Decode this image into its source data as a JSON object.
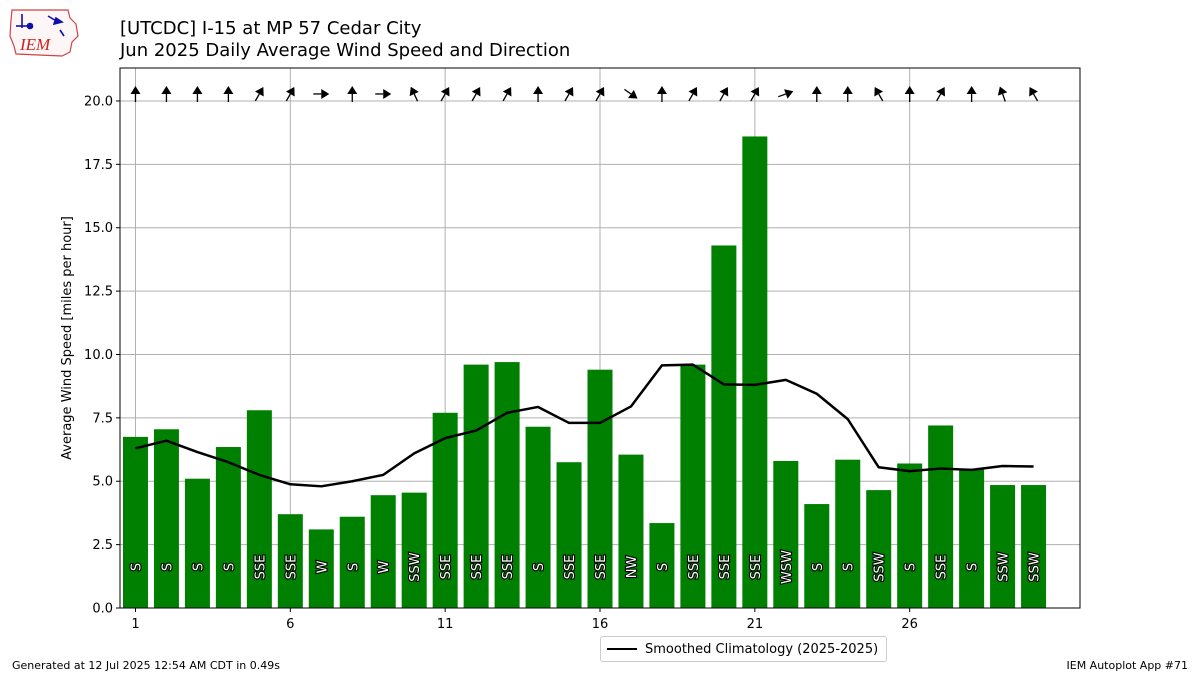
{
  "header": {
    "title_line1": "[UTCDC] I-15 at MP 57 Cedar City",
    "title_line2": "Jun 2025 Daily Average Wind Speed and Direction",
    "logo_text": "IEM"
  },
  "footer": {
    "generated": "Generated at 12 Jul 2025 12:54 AM CDT in 0.49s",
    "app": "IEM Autoplot App #71"
  },
  "legend": {
    "line_label": "Smoothed Climatology (2025-2025)"
  },
  "colors": {
    "bar": "#008000",
    "line": "#000000",
    "grid": "#b0b0b0",
    "arrow": "#000000"
  },
  "chart_data": {
    "type": "bar",
    "xlabel": "",
    "ylabel": "Average Wind Speed [miles per hour]",
    "xlim": [
      0.5,
      31.5
    ],
    "ylim": [
      0,
      21.3
    ],
    "xticks": [
      1,
      6,
      11,
      16,
      21,
      26
    ],
    "yticks": [
      "0.0",
      "2.5",
      "5.0",
      "7.5",
      "10.0",
      "12.5",
      "15.0",
      "17.5",
      "20.0"
    ],
    "grid": true,
    "legend_position": "bottom-center",
    "days": [
      1,
      2,
      3,
      4,
      5,
      6,
      7,
      8,
      9,
      10,
      11,
      12,
      13,
      14,
      15,
      16,
      17,
      18,
      19,
      20,
      21,
      22,
      23,
      24,
      25,
      26,
      27,
      28,
      29,
      30
    ],
    "speed": [
      6.75,
      7.05,
      5.1,
      6.35,
      7.8,
      3.7,
      3.1,
      3.6,
      4.45,
      4.55,
      7.7,
      9.6,
      9.7,
      7.15,
      5.75,
      9.4,
      6.05,
      3.35,
      9.6,
      14.3,
      18.6,
      5.8,
      4.1,
      5.85,
      4.65,
      5.7,
      7.2,
      5.5,
      4.85,
      4.85
    ],
    "direction": [
      "S",
      "S",
      "S",
      "S",
      "SSE",
      "SSE",
      "W",
      "S",
      "W",
      "SSW",
      "SSE",
      "SSE",
      "SSE",
      "S",
      "SSE",
      "SSE",
      "NW",
      "S",
      "SSE",
      "SSE",
      "SSE",
      "WSW",
      "S",
      "S",
      "SSW",
      "S",
      "SSE",
      "S",
      "SSW",
      "SSW"
    ],
    "arrow_angle_deg": [
      -90,
      -90,
      -90,
      -90,
      -60,
      -60,
      0,
      -90,
      0,
      -115,
      -60,
      -60,
      -60,
      -90,
      -60,
      -60,
      35,
      -90,
      -60,
      -60,
      -60,
      -20,
      -90,
      -90,
      -120,
      -90,
      -60,
      -90,
      -110,
      -120
    ],
    "series": [
      {
        "name": "Smoothed Climatology (2025-2025)",
        "values": [
          6.3,
          6.6,
          6.15,
          5.75,
          5.25,
          4.88,
          4.8,
          5.0,
          5.25,
          6.1,
          6.7,
          7.0,
          7.7,
          7.93,
          7.3,
          7.3,
          7.95,
          9.57,
          9.6,
          8.82,
          8.8,
          9.0,
          8.45,
          7.45,
          5.55,
          5.4,
          5.5,
          5.45,
          5.6,
          5.58
        ]
      }
    ]
  }
}
